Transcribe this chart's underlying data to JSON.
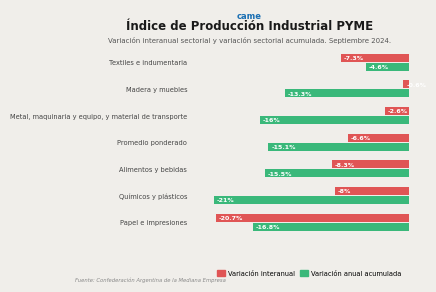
{
  "title": "Índice de Producción Industrial PYME",
  "subtitle": "Variación interanual sectorial y variación sectorial acumulada. Septiembre 2024.",
  "footer": "Fuente: Confederación Argentina de la Mediana Empresa",
  "categories": [
    "Textiles e indumentaria",
    "Madera y muebles",
    "Metal, maquinaria y equipo, y material de transporte",
    "Promedio ponderado",
    "Alimentos y bebidas",
    "Químicos y plásticos",
    "Papel e impresiones"
  ],
  "interanual": [
    -7.3,
    -0.6,
    -2.6,
    -6.6,
    -8.3,
    -8.0,
    -20.7
  ],
  "acumulada": [
    -4.6,
    -13.3,
    -16.0,
    -15.1,
    -15.5,
    -21.0,
    -16.8
  ],
  "interanual_labels": [
    "-7.3%",
    "-0.6%",
    "-2.6%",
    "-6.6%",
    "-8.3%",
    "-8%",
    "-20.7%"
  ],
  "acumulada_labels": [
    "-4.6%",
    "-13.3%",
    "-16%",
    "-15.1%",
    "-15.5%",
    "-21%",
    "-16.8%"
  ],
  "color_interanual": "#e05555",
  "color_acumulada": "#3ab87a",
  "bg_color": "#f0eeea",
  "xmin": -23,
  "legend_interanual": "Variación interanual",
  "legend_acumulada": "Variación anual acumulada",
  "title_fontsize": 8.5,
  "subtitle_fontsize": 5.0,
  "label_fontsize": 4.8,
  "bar_label_fontsize": 4.5,
  "footer_fontsize": 3.8
}
